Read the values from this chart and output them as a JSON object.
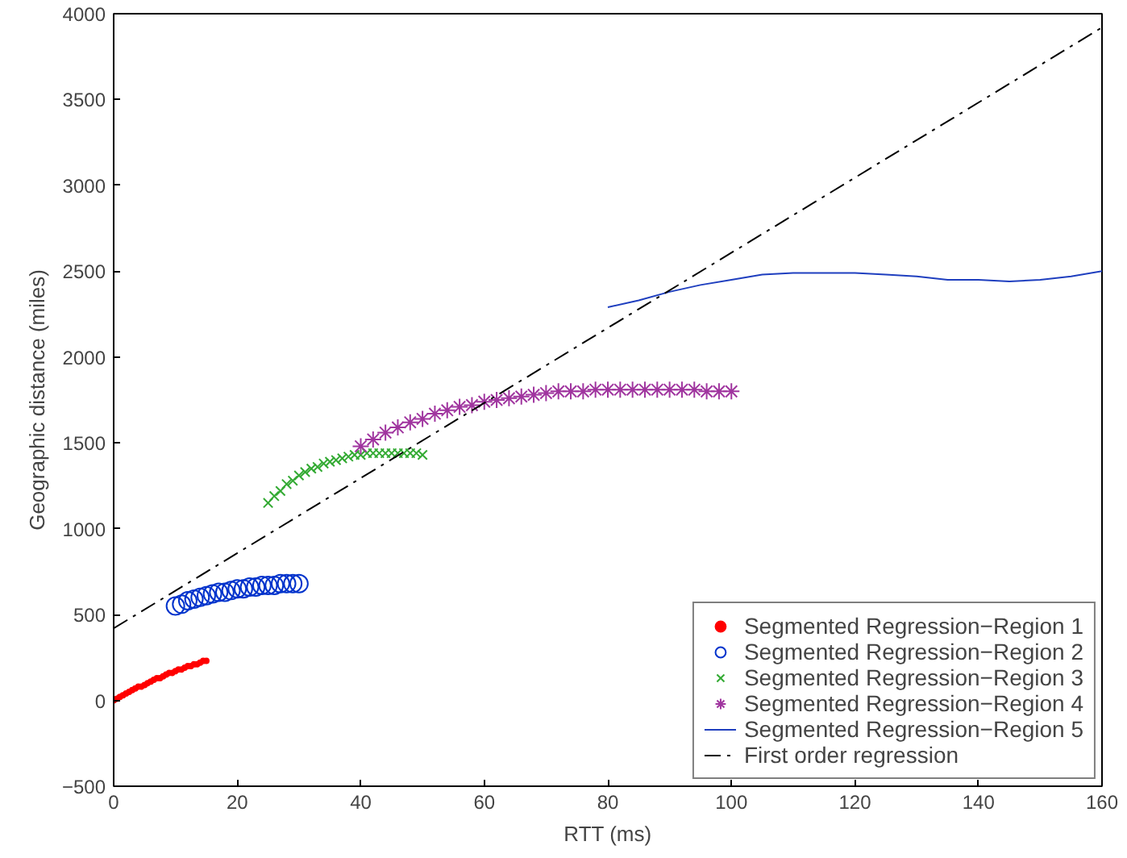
{
  "chart_data": {
    "type": "scatter",
    "xlabel": "RTT (ms)",
    "ylabel": "Geographic distance (miles)",
    "xlim": [
      0,
      160
    ],
    "ylim": [
      -500,
      4000
    ],
    "xticks": [
      0,
      20,
      40,
      60,
      80,
      100,
      120,
      140,
      160
    ],
    "yticks": [
      -500,
      0,
      500,
      1000,
      1500,
      2000,
      2500,
      3000,
      3500,
      4000
    ],
    "grid": false,
    "legend": "bottom right",
    "series": [
      {
        "name": "Segmented Regression−Region 1",
        "marker": "dot",
        "color": "#ff0000",
        "x": [
          0,
          0.5,
          1,
          1.5,
          2,
          2.5,
          3,
          3.5,
          4,
          4.5,
          5,
          5.5,
          6,
          6.5,
          7,
          7.5,
          8,
          8.5,
          9,
          9.5,
          10,
          10.5,
          11,
          11.5,
          12,
          12.5,
          13,
          13.5,
          14,
          14.5,
          15
        ],
        "values": [
          0,
          10,
          20,
          30,
          40,
          50,
          60,
          70,
          80,
          80,
          90,
          100,
          110,
          120,
          130,
          130,
          140,
          150,
          160,
          160,
          170,
          180,
          180,
          190,
          200,
          200,
          210,
          210,
          220,
          230,
          230
        ]
      },
      {
        "name": "Segmented Regression−Region 2",
        "marker": "circle",
        "color": "#0033cc",
        "x": [
          10,
          11,
          12,
          13,
          14,
          15,
          16,
          17,
          18,
          19,
          20,
          21,
          22,
          23,
          24,
          25,
          26,
          27,
          28,
          29,
          30
        ],
        "values": [
          550,
          560,
          580,
          590,
          600,
          610,
          620,
          630,
          630,
          640,
          650,
          650,
          660,
          660,
          670,
          670,
          670,
          680,
          680,
          680,
          680
        ]
      },
      {
        "name": "Segmented Regression−Region 3",
        "marker": "cross",
        "color": "#33aa33",
        "x": [
          25,
          26,
          27,
          28,
          29,
          30,
          31,
          32,
          33,
          34,
          35,
          36,
          37,
          38,
          39,
          40,
          41,
          42,
          43,
          44,
          45,
          46,
          47,
          48,
          49,
          50
        ],
        "values": [
          1150,
          1190,
          1220,
          1260,
          1280,
          1310,
          1330,
          1350,
          1360,
          1380,
          1390,
          1400,
          1410,
          1420,
          1430,
          1430,
          1440,
          1440,
          1440,
          1440,
          1440,
          1440,
          1440,
          1440,
          1440,
          1430
        ]
      },
      {
        "name": "Segmented Regression−Region 4",
        "color": "#a0359f",
        "x": [
          40,
          42,
          44,
          46,
          48,
          50,
          52,
          54,
          56,
          58,
          60,
          62,
          64,
          66,
          68,
          70,
          72,
          74,
          76,
          78,
          80,
          82,
          84,
          86,
          88,
          90,
          92,
          94,
          96,
          98,
          100
        ],
        "values": [
          1480,
          1520,
          1560,
          1590,
          1620,
          1640,
          1670,
          1690,
          1710,
          1720,
          1740,
          1750,
          1760,
          1770,
          1780,
          1790,
          1800,
          1800,
          1800,
          1810,
          1810,
          1810,
          1810,
          1810,
          1810,
          1810,
          1810,
          1810,
          1800,
          1800,
          1800
        ]
      },
      {
        "name": "Segmented Regression−Region 5",
        "type": "line",
        "color": "#1f3fbf",
        "x": [
          80,
          85,
          90,
          95,
          100,
          105,
          110,
          115,
          120,
          125,
          130,
          135,
          140,
          145,
          150,
          155,
          160
        ],
        "values": [
          2290,
          2330,
          2380,
          2420,
          2450,
          2480,
          2490,
          2490,
          2490,
          2480,
          2470,
          2450,
          2450,
          2440,
          2450,
          2470,
          2500
        ]
      },
      {
        "name": "First order regression",
        "type": "line",
        "line_style": "dashdot",
        "color": "#000000",
        "x": [
          0,
          160
        ],
        "values": [
          420,
          3920
        ]
      }
    ]
  }
}
